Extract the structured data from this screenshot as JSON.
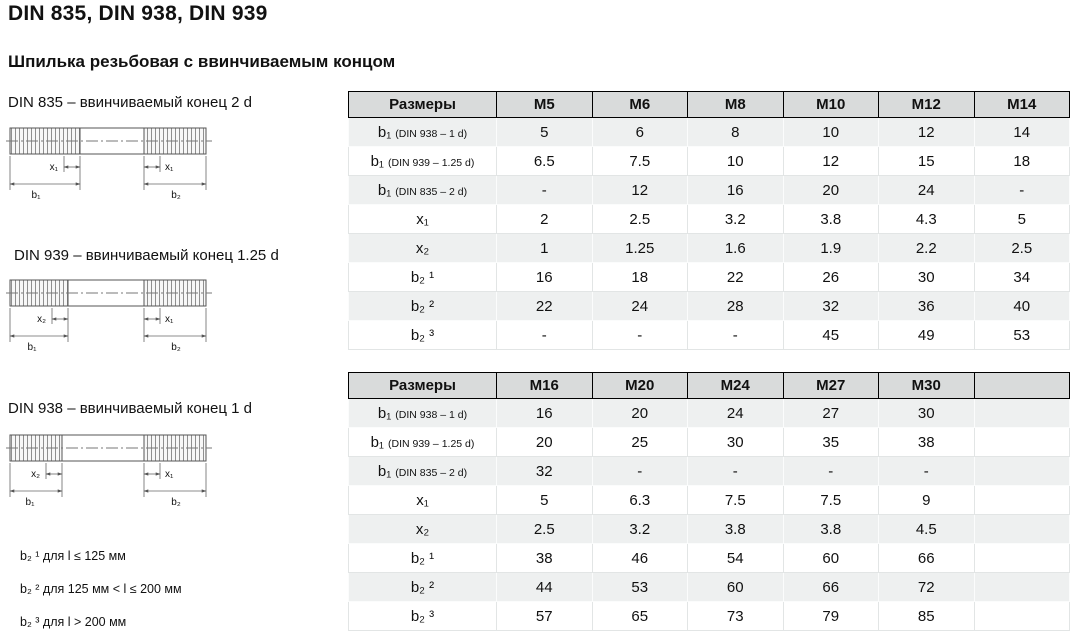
{
  "page": {
    "title": "DIN 835, DIN 938, DIN 939",
    "subtitle": "Шпилька резьбовая с ввинчиваемым концом"
  },
  "diagrams": [
    {
      "label": "DIN 835 – ввинчиваемый конец 2 d",
      "dims": {
        "left_x": "x₁",
        "left_b": "b₁",
        "right_x": "x₁",
        "right_b": "b₂"
      }
    },
    {
      "label": "DIN 939 – ввинчиваемый конец 1.25 d",
      "dims": {
        "left_x": "x₂",
        "left_b": "b₁",
        "right_x": "x₁",
        "right_b": "b₂"
      }
    },
    {
      "label": "DIN 938 – ввинчиваемый конец 1 d",
      "dims": {
        "left_x": "x₂",
        "left_b": "b₁",
        "right_x": "x₁",
        "right_b": "b₂"
      }
    }
  ],
  "footnotes": [
    "b₂ ¹ для l ≤ 125 мм",
    "b₂ ² для 125 мм < l ≤ 200 мм",
    "b₂ ³ для l > 200 мм"
  ],
  "tables": [
    {
      "header": [
        "Размеры",
        "M5",
        "M6",
        "M8",
        "M10",
        "M12",
        "M14"
      ],
      "rows": [
        {
          "label": {
            "text": "b₁",
            "note": "(DIN 938 – 1 d)"
          },
          "cells": [
            "5",
            "6",
            "8",
            "10",
            "12",
            "14"
          ]
        },
        {
          "label": {
            "text": "b₁",
            "note": "(DIN 939 – 1.25 d)"
          },
          "cells": [
            "6.5",
            "7.5",
            "10",
            "12",
            "15",
            "18"
          ]
        },
        {
          "label": {
            "text": "b₁",
            "note": "(DIN 835 – 2 d)"
          },
          "cells": [
            "-",
            "12",
            "16",
            "20",
            "24",
            "-"
          ]
        },
        {
          "label": {
            "text": "x₁",
            "note": ""
          },
          "cells": [
            "2",
            "2.5",
            "3.2",
            "3.8",
            "4.3",
            "5"
          ]
        },
        {
          "label": {
            "text": "x₂",
            "note": ""
          },
          "cells": [
            "1",
            "1.25",
            "1.6",
            "1.9",
            "2.2",
            "2.5"
          ]
        },
        {
          "label": {
            "text": "b₂ ¹",
            "note": ""
          },
          "cells": [
            "16",
            "18",
            "22",
            "26",
            "30",
            "34"
          ]
        },
        {
          "label": {
            "text": "b₂ ²",
            "note": ""
          },
          "cells": [
            "22",
            "24",
            "28",
            "32",
            "36",
            "40"
          ]
        },
        {
          "label": {
            "text": "b₂ ³",
            "note": ""
          },
          "cells": [
            "-",
            "-",
            "-",
            "45",
            "49",
            "53"
          ]
        }
      ]
    },
    {
      "header": [
        "Размеры",
        "M16",
        "M20",
        "M24",
        "M27",
        "M30",
        ""
      ],
      "rows": [
        {
          "label": {
            "text": "b₁",
            "note": "(DIN 938 – 1 d)"
          },
          "cells": [
            "16",
            "20",
            "24",
            "27",
            "30",
            ""
          ]
        },
        {
          "label": {
            "text": "b₁",
            "note": "(DIN 939 – 1.25 d)"
          },
          "cells": [
            "20",
            "25",
            "30",
            "35",
            "38",
            ""
          ]
        },
        {
          "label": {
            "text": "b₁",
            "note": "(DIN 835 – 2 d)"
          },
          "cells": [
            "32",
            "-",
            "-",
            "-",
            "-",
            ""
          ]
        },
        {
          "label": {
            "text": "x₁",
            "note": ""
          },
          "cells": [
            "5",
            "6.3",
            "7.5",
            "7.5",
            "9",
            ""
          ]
        },
        {
          "label": {
            "text": "x₂",
            "note": ""
          },
          "cells": [
            "2.5",
            "3.2",
            "3.8",
            "3.8",
            "4.5",
            ""
          ]
        },
        {
          "label": {
            "text": "b₂ ¹",
            "note": ""
          },
          "cells": [
            "38",
            "46",
            "54",
            "60",
            "66",
            ""
          ]
        },
        {
          "label": {
            "text": "b₂ ²",
            "note": ""
          },
          "cells": [
            "44",
            "53",
            "60",
            "66",
            "72",
            ""
          ]
        },
        {
          "label": {
            "text": "b₂ ³",
            "note": ""
          },
          "cells": [
            "57",
            "65",
            "73",
            "79",
            "85",
            ""
          ]
        }
      ]
    }
  ],
  "colors": {
    "header_bg": "#d9dbdb",
    "row_shade": "#eef0f0",
    "header_border": "#000000"
  }
}
